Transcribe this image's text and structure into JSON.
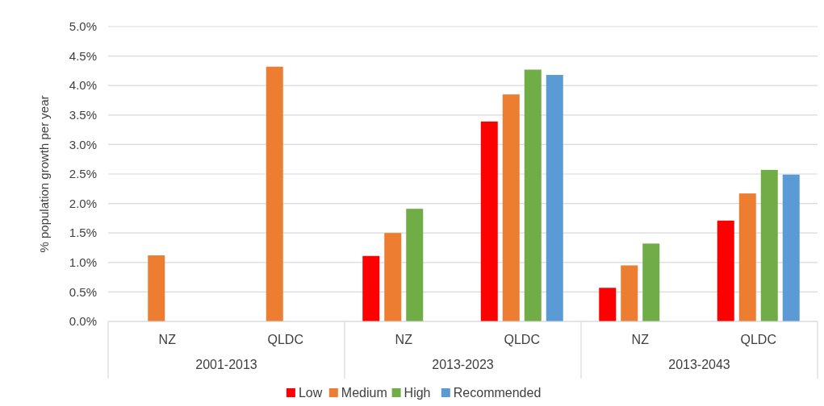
{
  "chart_data": {
    "type": "bar",
    "ylabel": "% population growth per year",
    "categories": [
      "NZ",
      "QLDC",
      "NZ",
      "QLDC",
      "NZ",
      "QLDC"
    ],
    "annotations": [
      "2001-2013",
      "2013-2023",
      "2013-2043"
    ],
    "series": [
      {
        "name": "Low",
        "color": "#ff0000",
        "values": [
          null,
          null,
          1.11,
          3.39,
          0.57,
          1.71
        ]
      },
      {
        "name": "Medium",
        "color": "#ed7d31",
        "values": [
          1.12,
          4.32,
          1.5,
          3.85,
          0.95,
          2.17
        ]
      },
      {
        "name": "High",
        "color": "#70ad47",
        "values": [
          null,
          null,
          1.91,
          4.27,
          1.32,
          2.57
        ]
      },
      {
        "name": "Recommended",
        "color": "#5b9bd5",
        "values": [
          null,
          null,
          null,
          4.18,
          null,
          2.49
        ]
      }
    ],
    "ylim": [
      0,
      5
    ],
    "yticks": [
      {
        "value": 0,
        "label": "0.0%"
      },
      {
        "value": 0.5,
        "label": "0.5%"
      },
      {
        "value": 1,
        "label": "1.0%"
      },
      {
        "value": 1.5,
        "label": "1.5%"
      },
      {
        "value": 2,
        "label": "2.0%"
      },
      {
        "value": 2.5,
        "label": "2.5%"
      },
      {
        "value": 3,
        "label": "3.0%"
      },
      {
        "value": 3.5,
        "label": "3.5%"
      },
      {
        "value": 4,
        "label": "4.0%"
      },
      {
        "value": 4.5,
        "label": "4.5%"
      },
      {
        "value": 5,
        "label": "5.0%"
      }
    ],
    "grid": "y",
    "legend": "bottom"
  }
}
